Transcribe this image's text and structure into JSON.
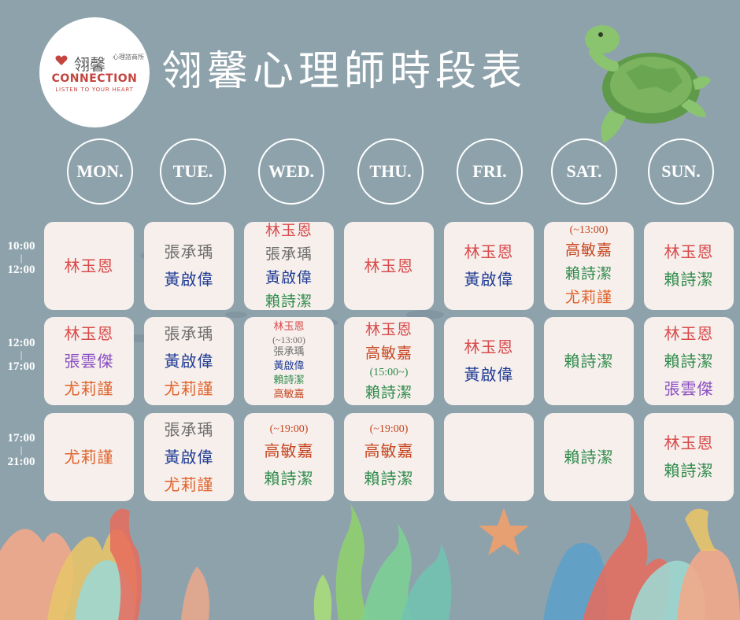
{
  "logo": {
    "text_cn": "翎馨",
    "text_small": "心理諮商所",
    "brand": "CONNECTION",
    "tagline": "LISTEN TO YOUR HEART"
  },
  "title": "翎馨心理師時段表",
  "days": [
    "MON.",
    "TUE.",
    "WED.",
    "THU.",
    "FRI.",
    "SAT.",
    "SUN."
  ],
  "time_slots": [
    {
      "start": "10:00",
      "sep": "|",
      "end": "12:00"
    },
    {
      "start": "12:00",
      "sep": "|",
      "end": "17:00"
    },
    {
      "start": "17:00",
      "sep": "|",
      "end": "21:00"
    }
  ],
  "colors": {
    "red": "#d94b4b",
    "gray": "#6e6e6e",
    "navy": "#1f3b94",
    "green": "#2e8b4a",
    "orange": "#e0622a",
    "purple": "#8a4fc2",
    "brown": "#c6451f"
  },
  "schedule": [
    [
      {
        "lines": [
          {
            "t": "林玉恩",
            "c": "red"
          }
        ]
      },
      {
        "lines": [
          {
            "t": "林玉恩",
            "c": "red"
          },
          {
            "t": "張雲傑",
            "c": "purple"
          },
          {
            "t": "尤莉謹",
            "c": "orange"
          }
        ]
      },
      {
        "lines": [
          {
            "t": "尤莉謹",
            "c": "orange"
          }
        ]
      }
    ],
    [
      {
        "lines": [
          {
            "t": "張承瑀",
            "c": "gray"
          },
          {
            "t": "黃啟偉",
            "c": "navy"
          }
        ]
      },
      {
        "lines": [
          {
            "t": "張承瑀",
            "c": "gray"
          },
          {
            "t": "黃啟偉",
            "c": "navy"
          },
          {
            "t": "尤莉謹",
            "c": "orange"
          }
        ]
      },
      {
        "lines": [
          {
            "t": "張承瑀",
            "c": "gray"
          },
          {
            "t": "黃啟偉",
            "c": "navy"
          },
          {
            "t": "尤莉謹",
            "c": "orange"
          }
        ]
      }
    ],
    [
      {
        "lines": [
          {
            "t": "林玉恩",
            "c": "red"
          },
          {
            "t": "張承瑀",
            "c": "gray"
          },
          {
            "t": "黃啟偉",
            "c": "navy"
          },
          {
            "t": "賴詩潔",
            "c": "green"
          }
        ],
        "dense": true
      },
      {
        "lines": [
          {
            "t": "林玉恩",
            "c": "red"
          },
          {
            "t": "(~13:00)",
            "c": "gray",
            "note": true
          },
          {
            "t": "張承瑀",
            "c": "gray"
          },
          {
            "t": "黃啟偉",
            "c": "navy"
          },
          {
            "t": "賴詩潔",
            "c": "green"
          },
          {
            "t": "高敏嘉",
            "c": "brown"
          }
        ],
        "tiny": true
      },
      {
        "lines": [
          {
            "t": "(~19:00)",
            "c": "brown",
            "note": true
          },
          {
            "t": "高敏嘉",
            "c": "brown"
          },
          {
            "t": "賴詩潔",
            "c": "green"
          }
        ]
      }
    ],
    [
      {
        "lines": [
          {
            "t": "林玉恩",
            "c": "red"
          }
        ]
      },
      {
        "lines": [
          {
            "t": "林玉恩",
            "c": "red"
          },
          {
            "t": "高敏嘉",
            "c": "brown"
          },
          {
            "t": "(15:00~)",
            "c": "green",
            "note": true
          },
          {
            "t": "賴詩潔",
            "c": "green"
          }
        ],
        "dense": true
      },
      {
        "lines": [
          {
            "t": "(~19:00)",
            "c": "brown",
            "note": true
          },
          {
            "t": "高敏嘉",
            "c": "brown"
          },
          {
            "t": "賴詩潔",
            "c": "green"
          }
        ]
      }
    ],
    [
      {
        "lines": [
          {
            "t": "林玉恩",
            "c": "red"
          },
          {
            "t": "黃啟偉",
            "c": "navy"
          }
        ]
      },
      {
        "lines": [
          {
            "t": "林玉恩",
            "c": "red"
          },
          {
            "t": "黃啟偉",
            "c": "navy"
          }
        ]
      },
      {
        "lines": []
      }
    ],
    [
      {
        "lines": [
          {
            "t": "(~13:00)",
            "c": "brown",
            "note": true
          },
          {
            "t": "高敏嘉",
            "c": "brown"
          },
          {
            "t": "賴詩潔",
            "c": "green"
          },
          {
            "t": "尤莉謹",
            "c": "orange"
          }
        ],
        "dense": true
      },
      {
        "lines": [
          {
            "t": "賴詩潔",
            "c": "green"
          }
        ]
      },
      {
        "lines": [
          {
            "t": "賴詩潔",
            "c": "green"
          }
        ]
      }
    ],
    [
      {
        "lines": [
          {
            "t": "林玉恩",
            "c": "red"
          },
          {
            "t": "賴詩潔",
            "c": "green"
          }
        ]
      },
      {
        "lines": [
          {
            "t": "林玉恩",
            "c": "red"
          },
          {
            "t": "賴詩潔",
            "c": "green"
          },
          {
            "t": "張雲傑",
            "c": "purple"
          }
        ]
      },
      {
        "lines": [
          {
            "t": "林玉恩",
            "c": "red"
          },
          {
            "t": "賴詩潔",
            "c": "green"
          }
        ]
      }
    ]
  ]
}
